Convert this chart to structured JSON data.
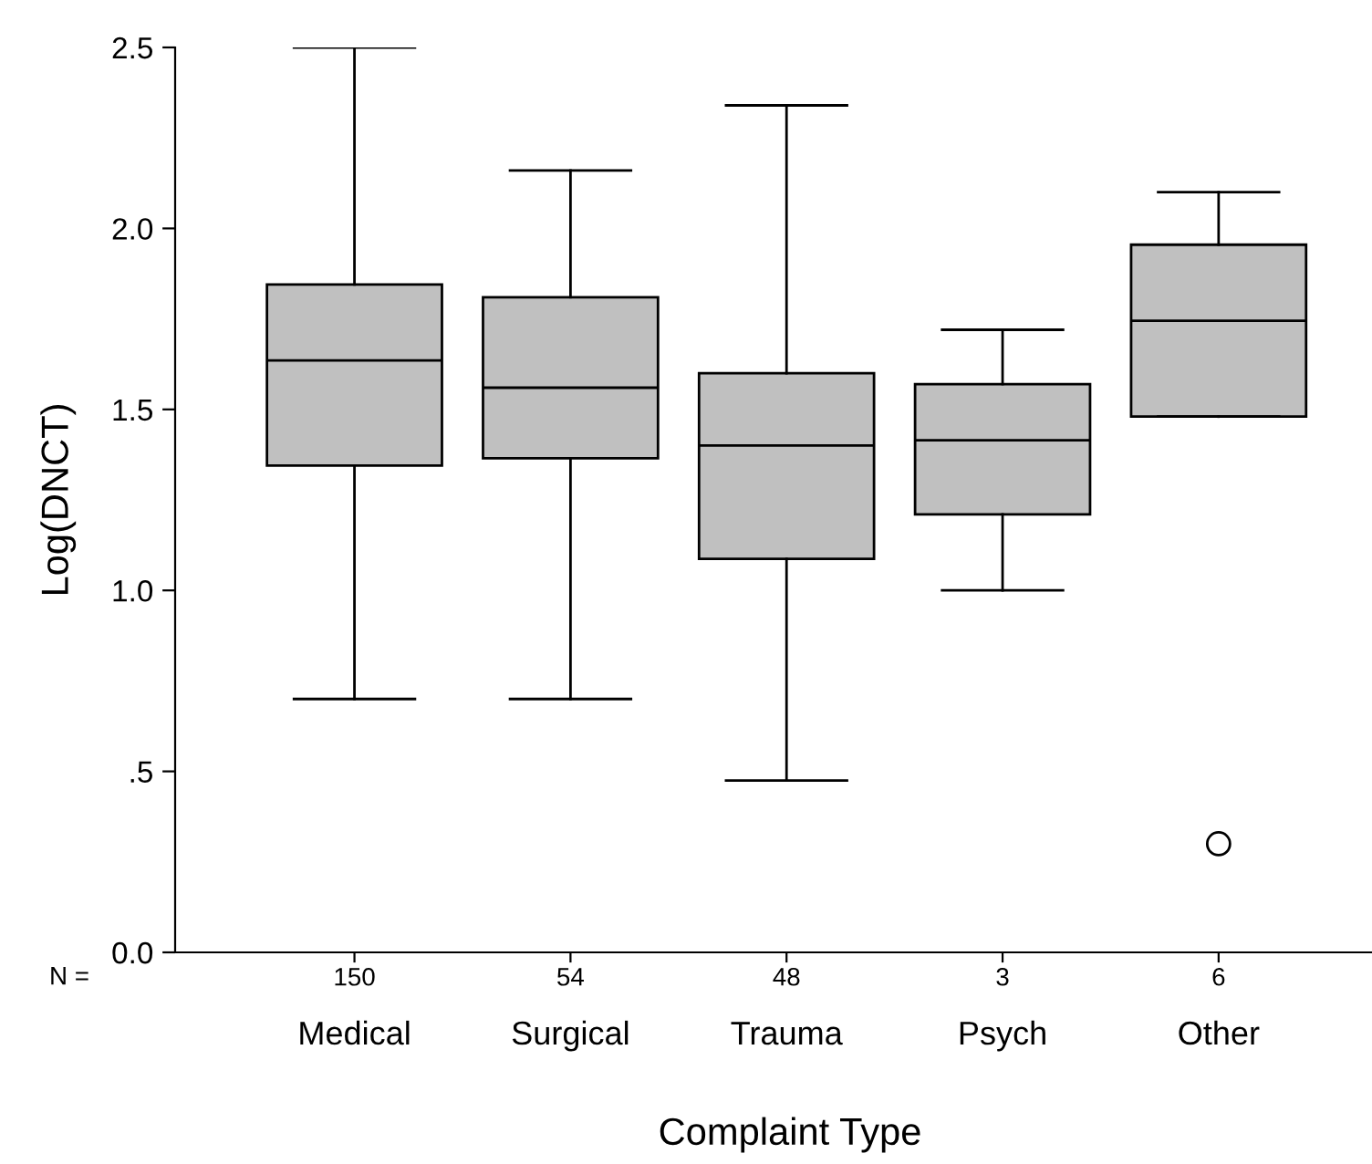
{
  "chart_data": {
    "type": "box",
    "xlabel": "Complaint Type",
    "ylabel": "Log(DNCT)",
    "categories": [
      "Medical",
      "Surgical",
      "Trauma",
      "Psych",
      "Other"
    ],
    "boxes": [
      {
        "low": 0.7,
        "q1": 1.345,
        "median": 1.635,
        "q3": 1.845,
        "high": 2.5
      },
      {
        "low": 0.7,
        "q1": 1.365,
        "median": 1.56,
        "q3": 1.81,
        "high": 2.16
      },
      {
        "low": 0.475,
        "q1": 1.087,
        "median": 1.4,
        "q3": 1.6,
        "high": 2.34
      },
      {
        "low": 1.0,
        "q1": 1.21,
        "median": 1.415,
        "q3": 1.57,
        "high": 1.72
      },
      {
        "low": 1.48,
        "q1": 1.48,
        "median": 1.745,
        "q3": 1.955,
        "high": 2.1,
        "outliers": [
          0.3
        ]
      }
    ],
    "color": "#c0c0c0",
    "ylim": [
      0,
      2.5
    ],
    "yticks": [
      {
        "value": 0,
        "label": "0.0"
      },
      {
        "value": 0.5,
        "label": ".5"
      },
      {
        "value": 1.0,
        "label": "1.0"
      },
      {
        "value": 1.5,
        "label": "1.5"
      },
      {
        "value": 2.0,
        "label": "2.0"
      },
      {
        "value": 2.5,
        "label": "2.5"
      }
    ],
    "annotations": [
      "N =",
      "150",
      "54",
      "48",
      "3",
      "6"
    ],
    "grid": false,
    "legend": false
  }
}
